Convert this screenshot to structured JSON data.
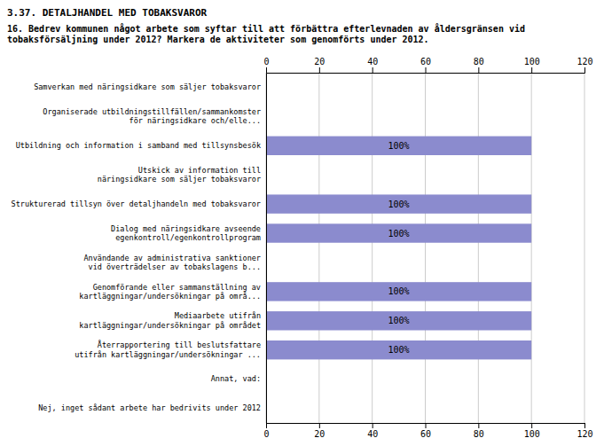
{
  "chart_data": {
    "type": "bar",
    "orientation": "horizontal",
    "title": "3.37. DETALJHANDEL MED TOBAKSVAROR",
    "subtitle": "16. Bedrev kommunen något arbete som syftar till att förbättra efterlevnaden av åldersgränsen vid\ntobaksförsäljning under 2012? Markera de aktiviteter som genomförts under 2012.",
    "categories": [
      "Samverkan med näringsidkare som säljer tobaksvaror",
      "Organiserade utbildningstillfällen/sammankomster\nför näringsidkare och/elle...",
      "Utbildning och information i samband med tillsynsbesök",
      "Utskick av information till\nnäringsidkare som säljer tobaksvaror",
      "Strukturerad tillsyn över detaljhandeln med tobaksvaror",
      "Dialog med näringsidkare avseende\negenkontroll/egenkontrollprogram",
      "Användande av administrativa sanktioner\nvid överträdelser av tobakslagens b...",
      "Genomförande eller sammanställning av\nkartläggningar/undersökningar på områ...",
      "Mediaarbete utifrån\nkartläggningar/undersökningar på området",
      "Återrapportering till beslutsfattare\nutifrån kartläggningar/undersökningar ...",
      "Annat, vad:",
      "Nej, inget sådant arbete har bedrivits under 2012"
    ],
    "values": [
      0,
      0,
      100,
      0,
      100,
      100,
      0,
      100,
      100,
      100,
      0,
      0
    ],
    "value_labels": [
      null,
      null,
      "100%",
      null,
      "100%",
      "100%",
      null,
      "100%",
      "100%",
      "100%",
      null,
      null
    ],
    "data_labels": true,
    "color": "#8b8bce",
    "xlim": [
      0,
      120
    ],
    "xticks": [
      0,
      20,
      40,
      60,
      80,
      100,
      120
    ],
    "grid": true
  }
}
